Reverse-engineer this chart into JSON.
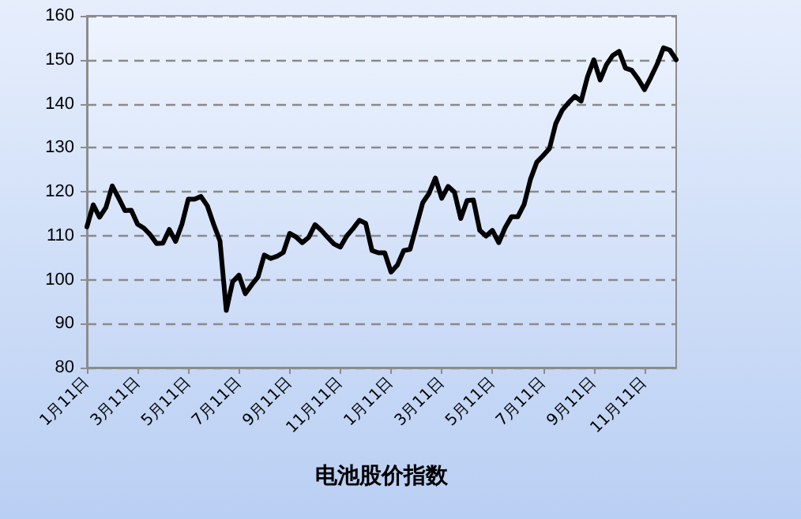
{
  "chart_data": {
    "type": "line",
    "xlabel": "电池股价指数",
    "categories": [
      "1月11日",
      null,
      null,
      null,
      null,
      null,
      null,
      null,
      "3月11日",
      null,
      null,
      null,
      null,
      null,
      null,
      null,
      "5月11日",
      null,
      null,
      null,
      null,
      null,
      null,
      null,
      "7月11日",
      null,
      null,
      null,
      null,
      null,
      null,
      null,
      "9月11日",
      null,
      null,
      null,
      null,
      null,
      null,
      null,
      "11月11日",
      null,
      null,
      null,
      null,
      null,
      null,
      null,
      "1月11日",
      null,
      null,
      null,
      null,
      null,
      null,
      null,
      "3月11日",
      null,
      null,
      null,
      null,
      null,
      null,
      null,
      "5月11日",
      null,
      null,
      null,
      null,
      null,
      null,
      null,
      "7月11日",
      null,
      null,
      null,
      null,
      null,
      null,
      null,
      "9月11日",
      null,
      null,
      null,
      null,
      null,
      null,
      null,
      "11月11日",
      null,
      null,
      null,
      null,
      null
    ],
    "series": [
      {
        "color": "#000000",
        "values": [
          112,
          117,
          114.2,
          116.4,
          121.3,
          118.6,
          115.7,
          115.8,
          112.6,
          111.7,
          110.2,
          108.2,
          108.3,
          111.4,
          108.7,
          112.6,
          118.3,
          118.3,
          118.9,
          116.8,
          112.6,
          108.8,
          93,
          99.5,
          101,
          96.8,
          98.8,
          100.6,
          105.6,
          104.8,
          105.3,
          106.2,
          110.5,
          109.7,
          108.4,
          109.6,
          112.5,
          111.2,
          109.6,
          108.1,
          107.4,
          109.9,
          111.6,
          113.5,
          112.8,
          106.6,
          106.1,
          106.1,
          101.7,
          103.3,
          106.6,
          106.9,
          112.2,
          117.5,
          119.6,
          123.1,
          118.5,
          121.2,
          119.9,
          113.9,
          118,
          118.1,
          111.2,
          109.9,
          111.2,
          108.4,
          111.8,
          114.3,
          114.3,
          117.1,
          122.8,
          126.7,
          128.2,
          129.8,
          135.5,
          138.5,
          140.2,
          141.7,
          140.6,
          146.1,
          150,
          145.4,
          148.9,
          151,
          151.9,
          148.1,
          147.6,
          145.6,
          143.2,
          146,
          149,
          152.7,
          152.2,
          150
        ]
      }
    ],
    "ylim": [
      80,
      160
    ],
    "yticks": [
      80,
      90,
      100,
      110,
      120,
      130,
      140,
      150,
      160
    ],
    "grid": "y",
    "marker": "none",
    "line_style": "solid"
  }
}
